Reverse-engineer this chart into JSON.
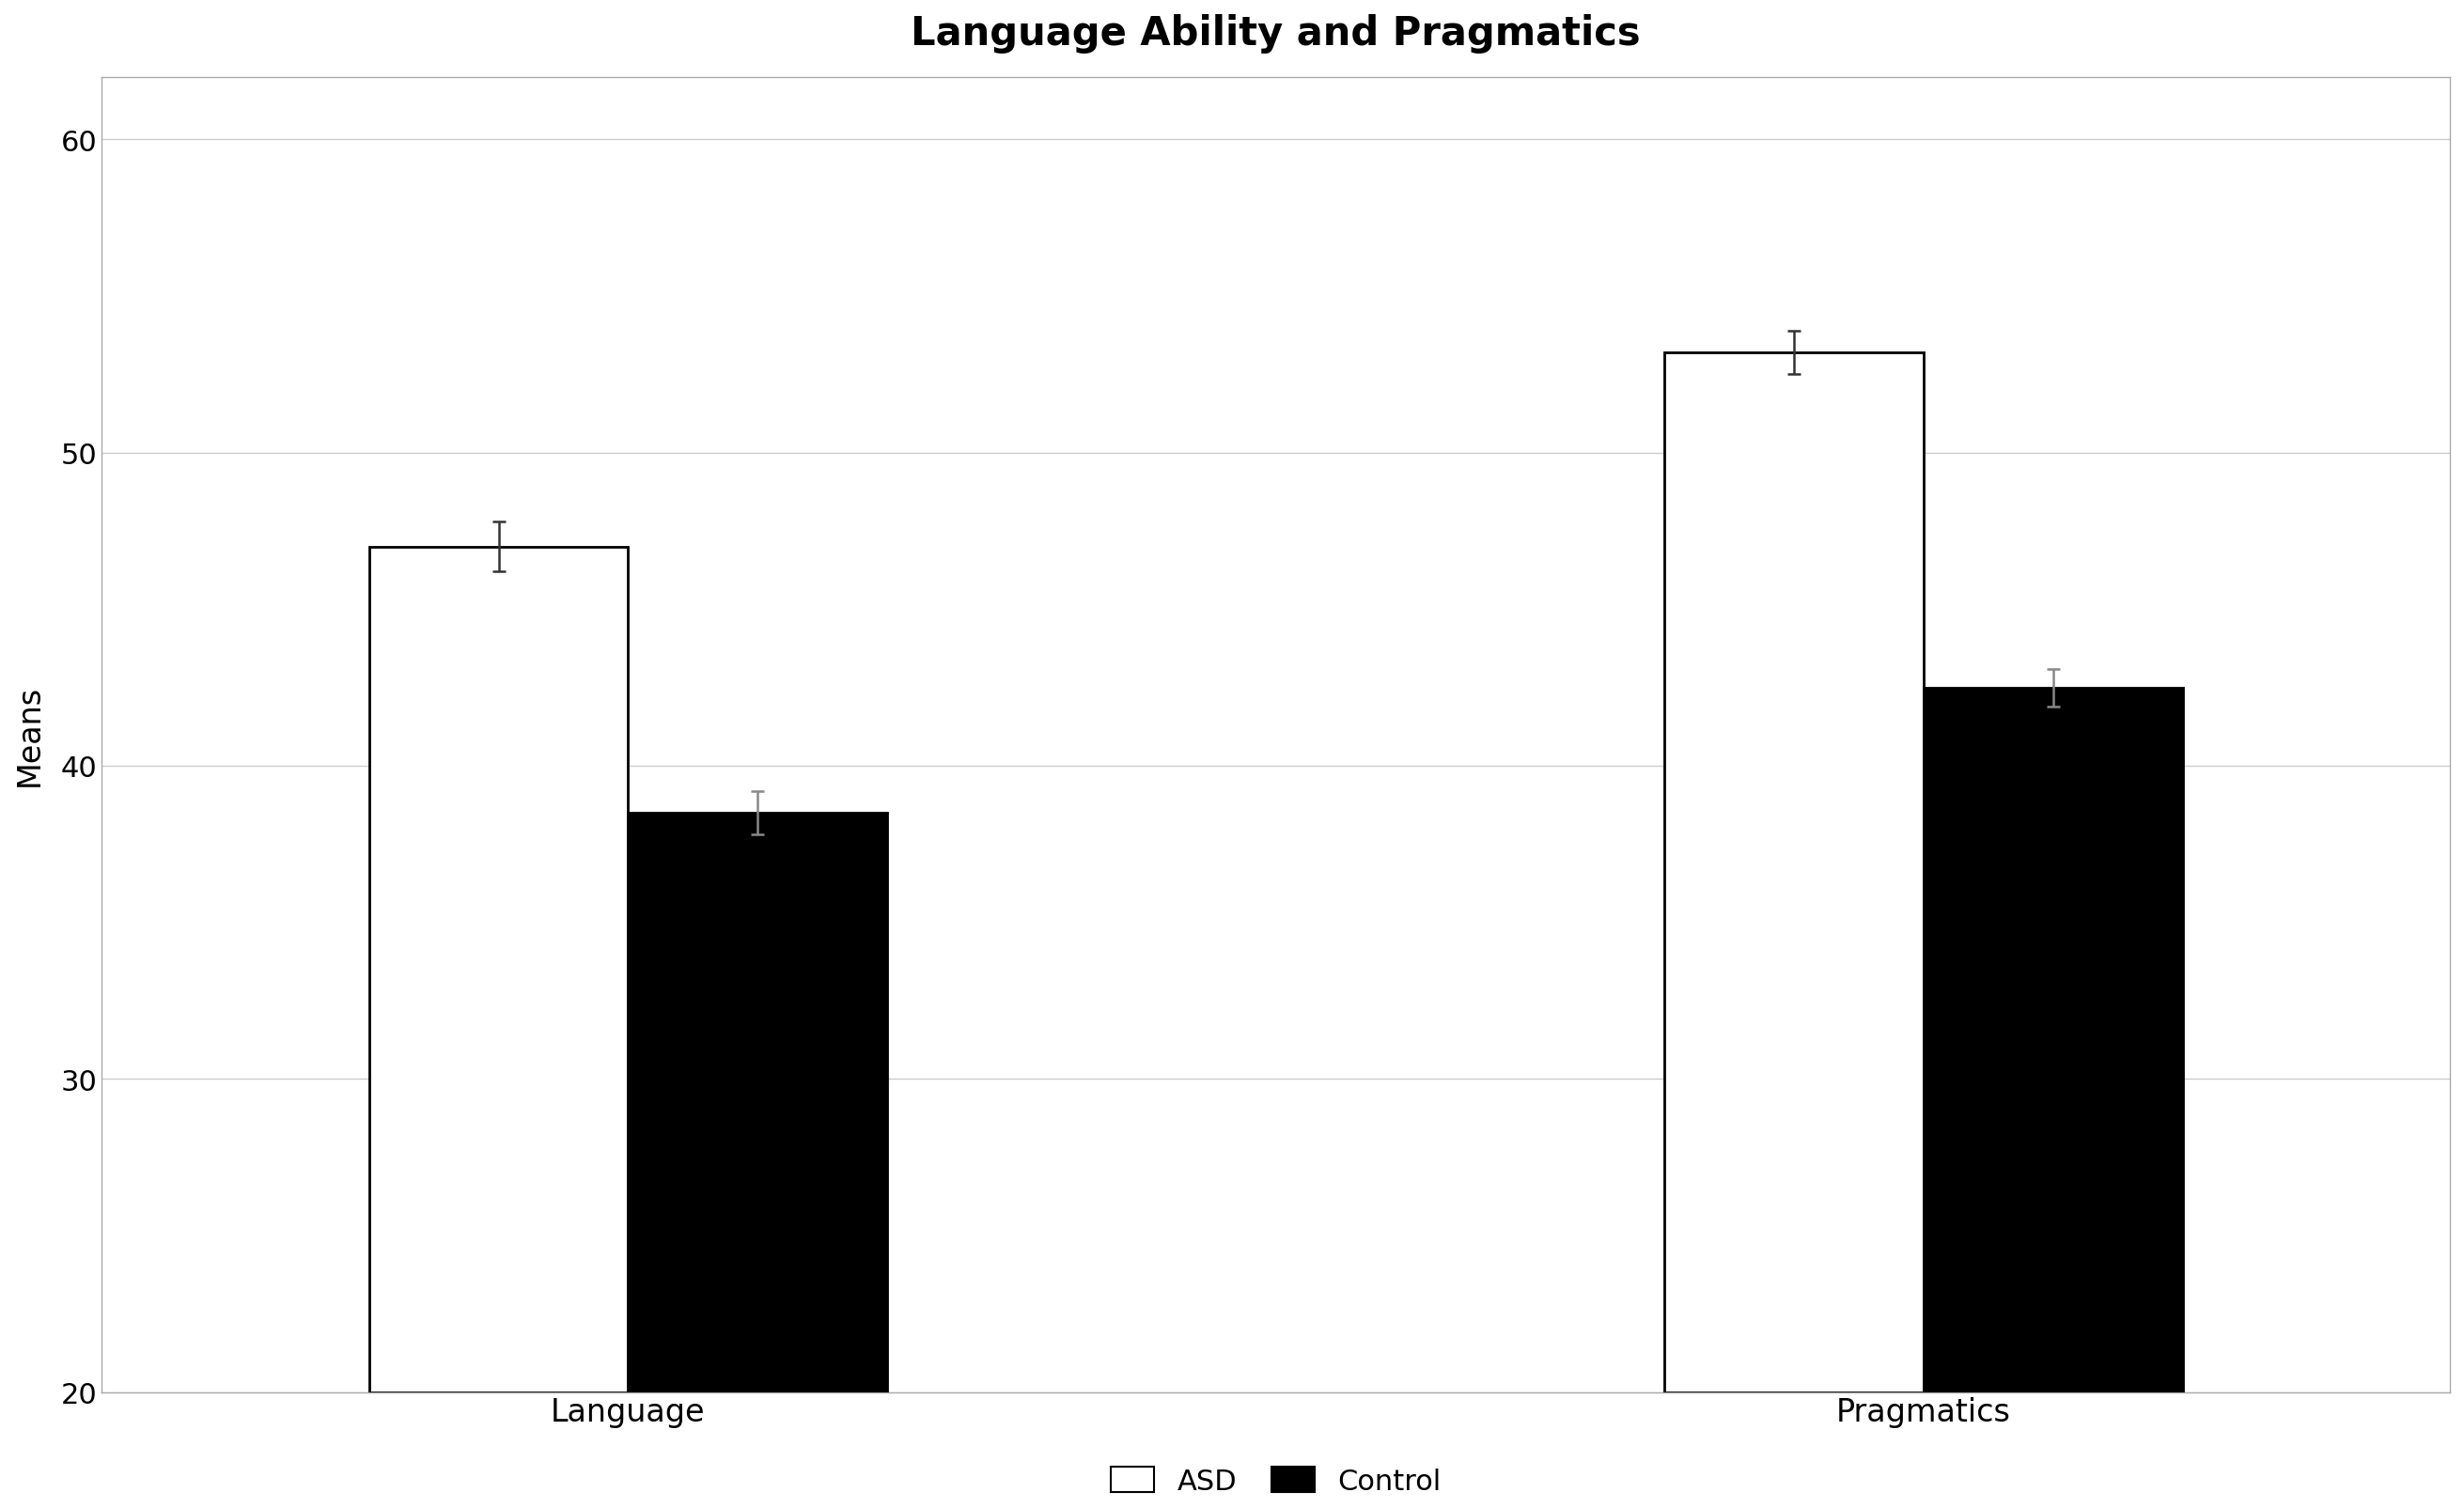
{
  "title": "Language Ability and Pragmatics",
  "ylabel": "Means",
  "categories": [
    "Language",
    "Pragmatics"
  ],
  "asd_values": [
    47.0,
    53.2
  ],
  "control_values": [
    38.5,
    42.5
  ],
  "asd_errors": [
    0.8,
    0.7
  ],
  "control_errors": [
    0.7,
    0.6
  ],
  "ymin": 20,
  "ylim": [
    20,
    62
  ],
  "yticks": [
    20,
    30,
    40,
    50,
    60
  ],
  "asd_color": "#ffffff",
  "asd_edgecolor": "#000000",
  "control_color": "#000000",
  "control_edgecolor": "#000000",
  "bar_width": 0.32,
  "group_centers": [
    1.0,
    2.6
  ],
  "title_fontsize": 30,
  "label_fontsize": 24,
  "tick_fontsize": 22,
  "legend_fontsize": 22,
  "background_color": "#ffffff",
  "grid_color": "#cccccc",
  "error_color_asd": "#333333",
  "error_color_control": "#888888",
  "error_capsize": 5,
  "error_linewidth": 1.8
}
